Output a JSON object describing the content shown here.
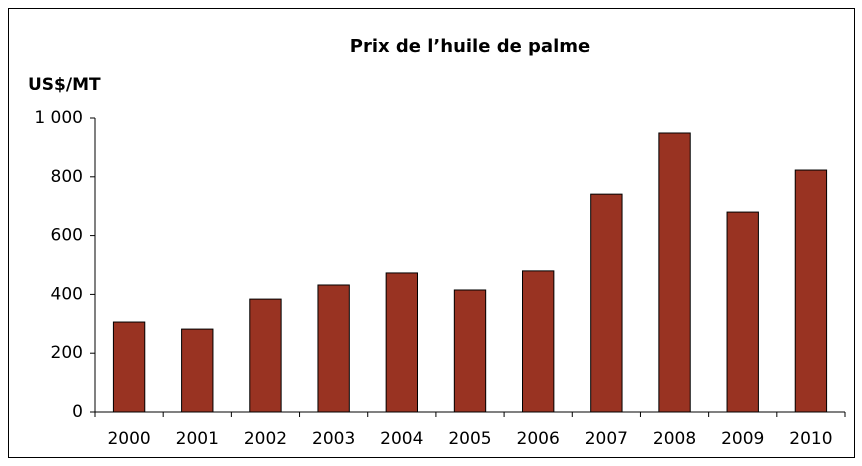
{
  "chart_data": {
    "type": "bar",
    "title": "Prix de l’huile de palme",
    "y_label": "US$/MT",
    "categories": [
      "2000",
      "2001",
      "2002",
      "2003",
      "2004",
      "2005",
      "2006",
      "2007",
      "2008",
      "2009",
      "2010"
    ],
    "values": [
      306,
      282,
      384,
      432,
      473,
      415,
      480,
      741,
      949,
      680,
      823
    ],
    "color": "#993322",
    "ylim": [
      0,
      1000
    ],
    "yticks": [
      0,
      200,
      400,
      600,
      800,
      {
        "value": 1000,
        "label": "1 000"
      }
    ],
    "grid": false
  }
}
